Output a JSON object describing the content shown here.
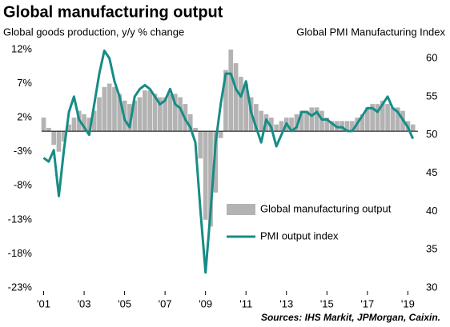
{
  "chart_data": {
    "type": "bar-line",
    "title": "Global manufacturing output",
    "y_label": "Global goods production, y/y % change",
    "y2_label": "Global PMI Manufacturing Index",
    "source": "Sources: IHS Markit, JPMorgan, Caixin.",
    "x": [
      2001,
      2001.25,
      2001.5,
      2001.75,
      2002,
      2002.25,
      2002.5,
      2002.75,
      2003,
      2003.25,
      2003.5,
      2003.75,
      2004,
      2004.25,
      2004.5,
      2004.75,
      2005,
      2005.25,
      2005.5,
      2005.75,
      2006,
      2006.25,
      2006.5,
      2006.75,
      2007,
      2007.25,
      2007.5,
      2007.75,
      2008,
      2008.25,
      2008.5,
      2008.75,
      2009,
      2009.25,
      2009.5,
      2009.75,
      2010,
      2010.25,
      2010.5,
      2010.75,
      2011,
      2011.25,
      2011.5,
      2011.75,
      2012,
      2012.25,
      2012.5,
      2012.75,
      2013,
      2013.25,
      2013.5,
      2013.75,
      2014,
      2014.25,
      2014.5,
      2014.75,
      2015,
      2015.25,
      2015.5,
      2015.75,
      2016,
      2016.25,
      2016.5,
      2016.75,
      2017,
      2017.25,
      2017.5,
      2017.75,
      2018,
      2018.25,
      2018.5,
      2018.75,
      2019,
      2019.25
    ],
    "series": [
      {
        "name": "Global manufacturing output",
        "type": "bar",
        "color": "#b3b3b3",
        "values": [
          2,
          0.5,
          -2,
          -3,
          -1.5,
          1,
          2,
          3,
          2.5,
          2,
          3,
          5,
          6.5,
          7,
          6.5,
          5.5,
          4.5,
          4,
          4.5,
          5,
          6,
          6,
          5.5,
          5,
          5,
          5.5,
          5.5,
          5,
          4,
          2.5,
          0.5,
          -4,
          -13,
          -14,
          -9,
          -1,
          9,
          12,
          10,
          8,
          7,
          5,
          4,
          3,
          2.5,
          2,
          1,
          1.5,
          2,
          2,
          2.5,
          3,
          3,
          3.5,
          3.5,
          3,
          2,
          1.5,
          1.5,
          1.5,
          1.5,
          1.5,
          2,
          2.5,
          3.5,
          4,
          4,
          4.5,
          4,
          3.5,
          3.5,
          3,
          1.5,
          1
        ]
      },
      {
        "name": "PMI output index",
        "type": "line",
        "axis": "y2",
        "color": "#178c86",
        "values": [
          47,
          46.5,
          48,
          42,
          48,
          53,
          55,
          52,
          51,
          50,
          54,
          58,
          61,
          60,
          57,
          55,
          52,
          51,
          55,
          56,
          56.5,
          56,
          55,
          54,
          54.5,
          56,
          54,
          53.5,
          52,
          51,
          49,
          40,
          32,
          40,
          49,
          54,
          58,
          58,
          56,
          55,
          57,
          53,
          51,
          49,
          52,
          51,
          48.5,
          50,
          51.5,
          50.5,
          51,
          53,
          53,
          52.5,
          53,
          52,
          52,
          51.5,
          51,
          51,
          50.5,
          50.5,
          51.5,
          52.5,
          53.5,
          53.5,
          53,
          54,
          55,
          53.5,
          53,
          52,
          51,
          49.5
        ]
      }
    ],
    "xlim": [
      2000.9,
      2019.5
    ],
    "xticks": [
      {
        "value": 2001,
        "label": "'01"
      },
      {
        "value": 2003,
        "label": "'03"
      },
      {
        "value": 2005,
        "label": "'05"
      },
      {
        "value": 2007,
        "label": "'07"
      },
      {
        "value": 2009,
        "label": "'09"
      },
      {
        "value": 2011,
        "label": "'11"
      },
      {
        "value": 2013,
        "label": "'13"
      },
      {
        "value": 2015,
        "label": "'15"
      },
      {
        "value": 2017,
        "label": "'17"
      },
      {
        "value": 2019,
        "label": "'19"
      }
    ],
    "ylim": [
      -23,
      12
    ],
    "yticks": [
      {
        "value": 12,
        "label": "12%"
      },
      {
        "value": 7,
        "label": "7%"
      },
      {
        "value": 2,
        "label": "2%"
      },
      {
        "value": -3,
        "label": "-3%"
      },
      {
        "value": -8,
        "label": "-8%"
      },
      {
        "value": -13,
        "label": "-13%"
      },
      {
        "value": -18,
        "label": "-18%"
      },
      {
        "value": -23,
        "label": "-23%"
      }
    ],
    "y2lim": [
      30,
      61.15
    ],
    "y2ticks": [
      30,
      35,
      40,
      45,
      50,
      55,
      60
    ],
    "legend": "lower right"
  }
}
